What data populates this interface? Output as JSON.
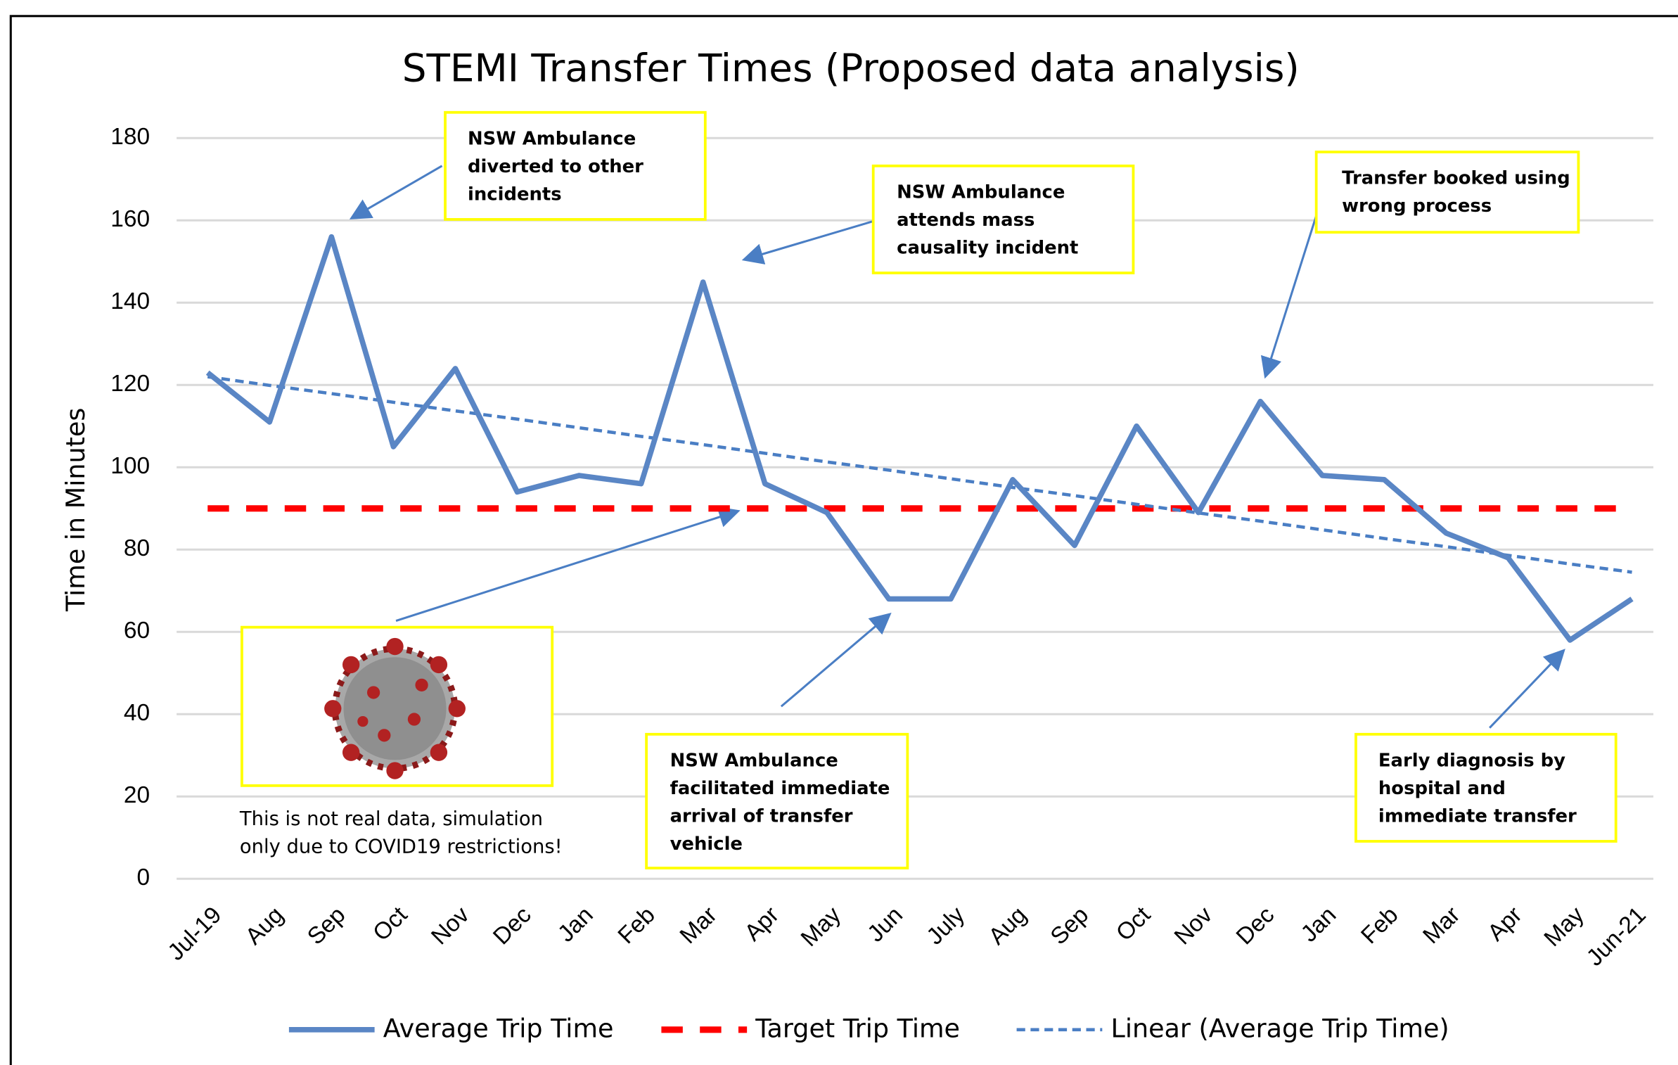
{
  "chart_data": {
    "type": "line",
    "title": "STEMI Transfer Times (Proposed data analysis)",
    "y_label": "Time in Minutes",
    "categories": [
      "Jul-19",
      "Aug",
      "Sep",
      "Oct",
      "Nov",
      "Dec",
      "Jan",
      "Feb",
      "Mar",
      "Apr",
      "May",
      "Jun",
      "July",
      "Aug",
      "Sep",
      "Oct",
      "Nov",
      "Dec",
      "Jan",
      "Feb",
      "Mar",
      "Apr",
      "May",
      "Jun-21"
    ],
    "series": [
      {
        "name": "Average Trip Time",
        "color": "#5a86c5",
        "style": "solid",
        "values": [
          123,
          111,
          156,
          105,
          124,
          94,
          98,
          96,
          145,
          96,
          89,
          68,
          68,
          97,
          81,
          110,
          89,
          116,
          98,
          97,
          84,
          78,
          58,
          68
        ]
      },
      {
        "name": "Target Trip Time",
        "color": "#ff0000",
        "style": "dashed",
        "values": [
          90,
          90,
          90,
          90,
          90,
          90,
          90,
          90,
          90,
          90,
          90,
          90,
          90,
          90,
          90,
          90,
          90,
          90,
          90,
          90,
          90,
          90,
          90,
          90
        ]
      },
      {
        "name": "Linear (Average Trip Time)",
        "color": "#4a7ec4",
        "style": "dotted",
        "values": [
          122,
          119.9,
          117.9,
          115.8,
          113.7,
          111.7,
          109.6,
          107.5,
          105.5,
          103.4,
          101.3,
          99.3,
          97.2,
          95.1,
          93.1,
          91.0,
          88.9,
          86.9,
          84.8,
          82.7,
          80.7,
          78.6,
          76.5,
          74.5
        ]
      }
    ],
    "ylim": [
      0,
      180
    ],
    "yticks": [
      0,
      20,
      40,
      60,
      80,
      100,
      120,
      140,
      160,
      180
    ],
    "grid": true,
    "legend": "bottom",
    "annotations": [
      {
        "lines": [
          "NSW Ambulance",
          "diverted to other",
          "incidents"
        ]
      },
      {
        "lines": [
          "NSW Ambulance",
          "attends mass",
          "causality incident"
        ]
      },
      {
        "lines": [
          "Transfer booked using",
          "wrong process"
        ]
      },
      {
        "lines": [
          "NSW Ambulance",
          "facilitated immediate",
          "arrival of transfer",
          "vehicle"
        ]
      },
      {
        "lines": [
          "Early diagnosis by",
          "hospital and",
          "immediate transfer"
        ]
      }
    ],
    "note": [
      "This is not real data, simulation",
      "only due to COVID19 restrictions!"
    ]
  }
}
